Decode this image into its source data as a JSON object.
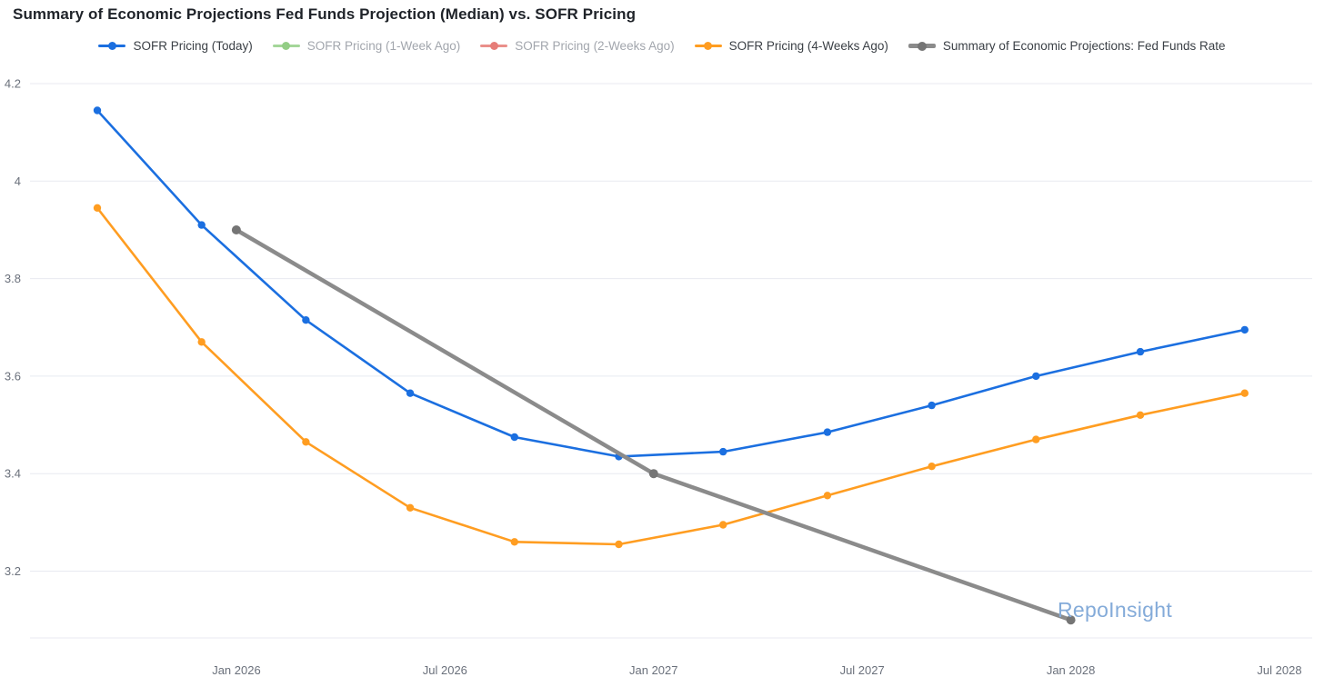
{
  "chart_data": {
    "type": "line",
    "title": "Summary of Economic Projections Fed Funds Projection (Median) vs. SOFR Pricing",
    "watermark": "RepoInsight",
    "background_color": "#ffffff",
    "grid_color": "#e8eaf1",
    "axis_label_color": "#6a707b",
    "legend_position": "top-center",
    "grid_on": true,
    "x_axis": {
      "ticks": [
        "Jan 2026",
        "Jul 2026",
        "Jan 2027",
        "Jul 2027",
        "Jan 2028",
        "Jul 2028"
      ]
    },
    "y_axis": {
      "ticks": [
        "4.2",
        "4",
        "3.8",
        "3.6",
        "3.4",
        "3.2"
      ],
      "display_min": 3.06,
      "display_max": 4.2
    },
    "legend": [
      {
        "label": "SOFR Pricing (Today)",
        "color": "#1b6fe0",
        "dot_color": "#1b6fe0",
        "active": true,
        "thick": false
      },
      {
        "label": "SOFR Pricing (1-Week Ago)",
        "color": "#a4d699",
        "dot_color": "#93cd85",
        "active": false,
        "thick": false
      },
      {
        "label": "SOFR Pricing (2-Weeks Ago)",
        "color": "#ea8f8a",
        "dot_color": "#e67d78",
        "active": false,
        "thick": false
      },
      {
        "label": "SOFR Pricing (4-Weeks Ago)",
        "color": "#ff9d21",
        "dot_color": "#ff9d21",
        "active": true,
        "thick": false
      },
      {
        "label": "Summary of Economic Projections: Fed Funds Rate",
        "color": "#8b8b8b",
        "dot_color": "#757575",
        "active": true,
        "thick": true
      }
    ],
    "series": [
      {
        "name": "SOFR Pricing (Today)",
        "color": "#1b6fe0",
        "marker_color": "#1b6fe0",
        "line_width": 2.6,
        "marker_radius": 4.2,
        "visible": true,
        "x": [
          "Sep 2025",
          "Dec 2025",
          "Mar 2026",
          "Jun 2026",
          "Sep 2026",
          "Dec 2026",
          "Mar 2027",
          "Jun 2027",
          "Sep 2027",
          "Dec 2027",
          "Mar 2028",
          "Jun 2028"
        ],
        "values": [
          4.145,
          3.91,
          3.715,
          3.565,
          3.475,
          3.435,
          3.445,
          3.485,
          3.54,
          3.6,
          3.65,
          3.695
        ]
      },
      {
        "name": "SOFR Pricing (1-Week Ago)",
        "color": "#a4d699",
        "visible": false,
        "x": [],
        "values": []
      },
      {
        "name": "SOFR Pricing (2-Weeks Ago)",
        "color": "#ea8f8a",
        "visible": false,
        "x": [],
        "values": []
      },
      {
        "name": "SOFR Pricing (4-Weeks Ago)",
        "color": "#ff9d21",
        "marker_color": "#ff9d21",
        "line_width": 2.6,
        "marker_radius": 4.2,
        "visible": true,
        "x": [
          "Sep 2025",
          "Dec 2025",
          "Mar 2026",
          "Jun 2026",
          "Sep 2026",
          "Dec 2026",
          "Mar 2027",
          "Jun 2027",
          "Sep 2027",
          "Dec 2027",
          "Mar 2028",
          "Jun 2028"
        ],
        "values": [
          3.945,
          3.67,
          3.465,
          3.33,
          3.26,
          3.255,
          3.295,
          3.355,
          3.415,
          3.47,
          3.52,
          3.565
        ]
      },
      {
        "name": "Summary of Economic Projections: Fed Funds Rate",
        "color": "#8b8b8b",
        "marker_color": "#757575",
        "line_width": 4.5,
        "marker_radius": 5,
        "visible": true,
        "x": [
          "Jan 2026",
          "Jan 2027",
          "Jan 2028"
        ],
        "values": [
          3.9,
          3.4,
          3.1
        ]
      }
    ]
  }
}
